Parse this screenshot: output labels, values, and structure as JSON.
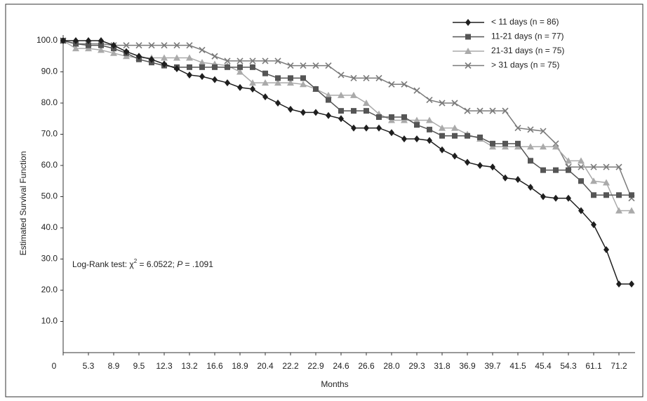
{
  "chart_data": {
    "type": "line",
    "ylabel": "Estimated Survival Function",
    "xlabel": "Months",
    "annotation": [
      "Log-Rank test: χ",
      "2",
      " = 6.0522; ",
      "P",
      " = .1091"
    ],
    "categories": [
      "0",
      null,
      "5.3",
      null,
      "8.9",
      null,
      "9.5",
      null,
      "12.3",
      null,
      "13.2",
      null,
      "16.6",
      null,
      "18.9",
      null,
      "20.4",
      null,
      "22.2",
      null,
      "22.9",
      null,
      "24.6",
      null,
      "26.6",
      null,
      "28.0",
      null,
      "29.3",
      null,
      "31.8",
      null,
      "36.9",
      null,
      "39.7",
      null,
      "41.5",
      null,
      "45.4",
      null,
      "54.3",
      null,
      "61.1",
      null,
      "71.2",
      null
    ],
    "ylim": [
      0,
      100
    ],
    "yticks": [
      {
        "value": 10,
        "label": "10.0"
      },
      {
        "value": 20,
        "label": "20.0"
      },
      {
        "value": 30,
        "label": "30.0"
      },
      {
        "value": 40,
        "label": "40.0"
      },
      {
        "value": 50,
        "label": "50.0"
      },
      {
        "value": 60,
        "label": "60.0"
      },
      {
        "value": 70,
        "label": "70.0"
      },
      {
        "value": 80,
        "label": "80.0"
      },
      {
        "value": 90,
        "label": "90.0"
      },
      {
        "value": 100,
        "label": "100.0"
      }
    ],
    "legend": "top-right",
    "series": [
      {
        "name": "< 11 days (n = 86)",
        "color": "#1e1e1e",
        "marker": "diamond",
        "values": [
          100,
          100,
          100,
          100,
          98.5,
          96.5,
          95,
          94,
          92.5,
          91,
          89,
          88.5,
          87.5,
          86.5,
          85,
          84.5,
          82,
          80,
          78,
          77,
          77,
          76,
          75,
          72,
          72,
          72,
          70.5,
          68.5,
          68.5,
          68,
          65,
          63,
          61,
          60,
          59.5,
          56,
          55.5,
          53,
          50,
          49.5,
          49.5,
          45.5,
          41,
          33,
          22,
          22
        ]
      },
      {
        "name": "11-21 days (n = 77)",
        "color": "#555555",
        "marker": "square",
        "values": [
          100,
          99,
          98.5,
          98.5,
          97.5,
          96,
          94,
          93,
          92,
          91.5,
          91.5,
          91.5,
          91.5,
          91.5,
          91.5,
          91.5,
          89.5,
          88,
          88,
          88,
          84.5,
          81,
          77.5,
          77.5,
          77.5,
          75.5,
          75.5,
          75.5,
          73,
          71.5,
          69.5,
          69.5,
          69.5,
          69,
          67,
          67,
          67,
          61.5,
          58.5,
          58.5,
          58.5,
          55,
          50.5,
          50.5,
          50.5,
          50.5
        ]
      },
      {
        "name": "21-31 days (n = 75)",
        "color": "#aaaaaa",
        "marker": "triangle",
        "values": [
          100,
          97.5,
          97.5,
          97,
          96,
          95,
          94.5,
          94.5,
          94.5,
          94.5,
          94.5,
          93,
          92.5,
          92,
          90,
          86.5,
          86.5,
          86.5,
          86.5,
          86,
          84.5,
          82.5,
          82.5,
          82.5,
          80,
          76.5,
          74.5,
          74.5,
          74.5,
          74.5,
          72,
          72,
          70,
          68.5,
          66,
          66,
          66,
          66,
          66,
          66,
          61.5,
          61.5,
          55,
          54.5,
          45.5,
          45.5
        ]
      },
      {
        "name": "> 31 days (n = 75)",
        "color": "#7a7a7a",
        "marker": "x",
        "values": [
          100,
          99,
          99,
          99,
          98.5,
          98.5,
          98.5,
          98.5,
          98.5,
          98.5,
          98.5,
          97,
          95,
          93.5,
          93.5,
          93.5,
          93.5,
          93.5,
          92,
          92,
          92,
          92,
          89,
          88,
          88,
          88,
          86,
          86,
          84,
          81,
          80,
          80,
          77.5,
          77.5,
          77.5,
          77.5,
          72,
          71.5,
          71,
          67,
          59.5,
          59.5,
          59.5,
          59.5,
          59.5,
          49.5
        ]
      }
    ]
  }
}
